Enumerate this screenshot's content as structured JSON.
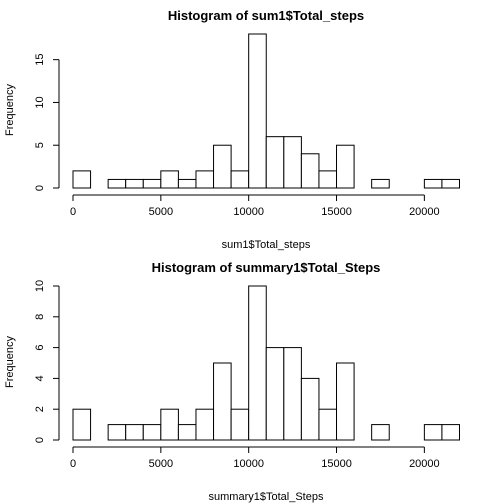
{
  "chart_data": [
    {
      "type": "bar",
      "title": "Histogram of sum1$Total_steps",
      "xlabel": "sum1$Total_steps",
      "ylabel": "Frequency",
      "bin_width": 1000,
      "x_start": 0,
      "bins": [
        {
          "x0": 0,
          "x1": 1000,
          "count": 2
        },
        {
          "x0": 1000,
          "x1": 2000,
          "count": 0
        },
        {
          "x0": 2000,
          "x1": 3000,
          "count": 1
        },
        {
          "x0": 3000,
          "x1": 4000,
          "count": 1
        },
        {
          "x0": 4000,
          "x1": 5000,
          "count": 1
        },
        {
          "x0": 5000,
          "x1": 6000,
          "count": 2
        },
        {
          "x0": 6000,
          "x1": 7000,
          "count": 1
        },
        {
          "x0": 7000,
          "x1": 8000,
          "count": 2
        },
        {
          "x0": 8000,
          "x1": 9000,
          "count": 5
        },
        {
          "x0": 9000,
          "x1": 10000,
          "count": 2
        },
        {
          "x0": 10000,
          "x1": 11000,
          "count": 18
        },
        {
          "x0": 11000,
          "x1": 12000,
          "count": 6
        },
        {
          "x0": 12000,
          "x1": 13000,
          "count": 6
        },
        {
          "x0": 13000,
          "x1": 14000,
          "count": 4
        },
        {
          "x0": 14000,
          "x1": 15000,
          "count": 2
        },
        {
          "x0": 15000,
          "x1": 16000,
          "count": 5
        },
        {
          "x0": 16000,
          "x1": 17000,
          "count": 0
        },
        {
          "x0": 17000,
          "x1": 18000,
          "count": 1
        },
        {
          "x0": 18000,
          "x1": 19000,
          "count": 0
        },
        {
          "x0": 19000,
          "x1": 20000,
          "count": 0
        },
        {
          "x0": 20000,
          "x1": 21000,
          "count": 1
        },
        {
          "x0": 21000,
          "x1": 22000,
          "count": 1
        }
      ],
      "xlim": [
        0,
        22000
      ],
      "ylim": [
        0,
        18
      ],
      "x_ticks": [
        0,
        5000,
        10000,
        15000,
        20000
      ],
      "y_ticks": [
        0,
        5,
        10,
        15
      ],
      "grid": false,
      "legend": "none"
    },
    {
      "type": "bar",
      "title": "Histogram of summary1$Total_Steps",
      "xlabel": "summary1$Total_Steps",
      "ylabel": "Frequency",
      "bin_width": 1000,
      "x_start": 0,
      "bins": [
        {
          "x0": 0,
          "x1": 1000,
          "count": 2
        },
        {
          "x0": 1000,
          "x1": 2000,
          "count": 0
        },
        {
          "x0": 2000,
          "x1": 3000,
          "count": 1
        },
        {
          "x0": 3000,
          "x1": 4000,
          "count": 1
        },
        {
          "x0": 4000,
          "x1": 5000,
          "count": 1
        },
        {
          "x0": 5000,
          "x1": 6000,
          "count": 2
        },
        {
          "x0": 6000,
          "x1": 7000,
          "count": 1
        },
        {
          "x0": 7000,
          "x1": 8000,
          "count": 2
        },
        {
          "x0": 8000,
          "x1": 9000,
          "count": 5
        },
        {
          "x0": 9000,
          "x1": 10000,
          "count": 2
        },
        {
          "x0": 10000,
          "x1": 11000,
          "count": 10
        },
        {
          "x0": 11000,
          "x1": 12000,
          "count": 6
        },
        {
          "x0": 12000,
          "x1": 13000,
          "count": 6
        },
        {
          "x0": 13000,
          "x1": 14000,
          "count": 4
        },
        {
          "x0": 14000,
          "x1": 15000,
          "count": 2
        },
        {
          "x0": 15000,
          "x1": 16000,
          "count": 5
        },
        {
          "x0": 16000,
          "x1": 17000,
          "count": 0
        },
        {
          "x0": 17000,
          "x1": 18000,
          "count": 1
        },
        {
          "x0": 18000,
          "x1": 19000,
          "count": 0
        },
        {
          "x0": 19000,
          "x1": 20000,
          "count": 0
        },
        {
          "x0": 20000,
          "x1": 21000,
          "count": 1
        },
        {
          "x0": 21000,
          "x1": 22000,
          "count": 1
        }
      ],
      "xlim": [
        0,
        22000
      ],
      "ylim": [
        0,
        10
      ],
      "x_ticks": [
        0,
        5000,
        10000,
        15000,
        20000
      ],
      "y_ticks": [
        0,
        2,
        4,
        6,
        8,
        10
      ],
      "grid": false,
      "legend": "none"
    }
  ]
}
